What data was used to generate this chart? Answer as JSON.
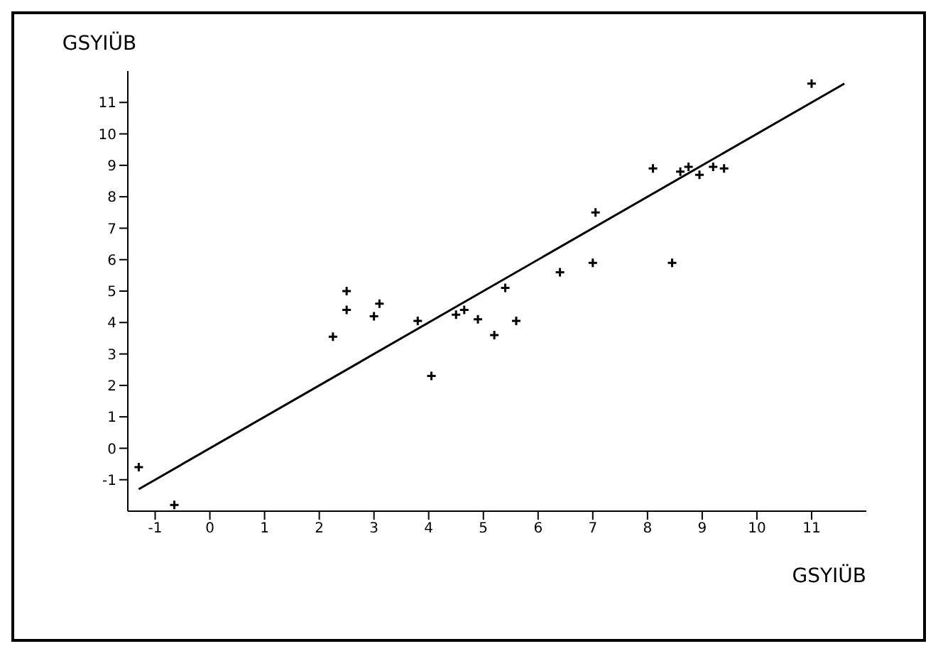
{
  "chart_data": {
    "type": "scatter",
    "xlabel": "GSYIÜB",
    "ylabel": "GSYIÜB",
    "xlim": [
      -1.5,
      12
    ],
    "ylim": [
      -2,
      12
    ],
    "xticks": [
      -1,
      0,
      1,
      2,
      3,
      4,
      5,
      6,
      7,
      8,
      9,
      10,
      11
    ],
    "yticks": [
      -1,
      0,
      1,
      2,
      3,
      4,
      5,
      6,
      7,
      8,
      9,
      10,
      11
    ],
    "series": [
      {
        "color": "#000000",
        "marker": "cross",
        "x": [
          2.5,
          3.1,
          2.5,
          3.0,
          3.8,
          2.25,
          4.05,
          4.5,
          4.65,
          4.9,
          5.2,
          5.6,
          5.4,
          6.4,
          7.0,
          8.45,
          7.05,
          8.1,
          8.75,
          9.2,
          8.6,
          8.95,
          9.4,
          11.0,
          -1.3,
          -0.65
        ],
        "values": [
          5.0,
          4.6,
          4.4,
          4.2,
          4.05,
          3.55,
          2.3,
          4.25,
          4.4,
          4.1,
          3.6,
          4.05,
          5.1,
          5.6,
          5.9,
          5.9,
          7.5,
          8.9,
          8.95,
          8.95,
          8.8,
          8.7,
          8.9,
          11.6,
          -0.6,
          -1.8
        ]
      },
      {
        "type": "line",
        "marker": "none",
        "color": "#000000",
        "x": [
          -1.3,
          11.6
        ],
        "values": [
          -1.3,
          11.6
        ]
      }
    ]
  }
}
